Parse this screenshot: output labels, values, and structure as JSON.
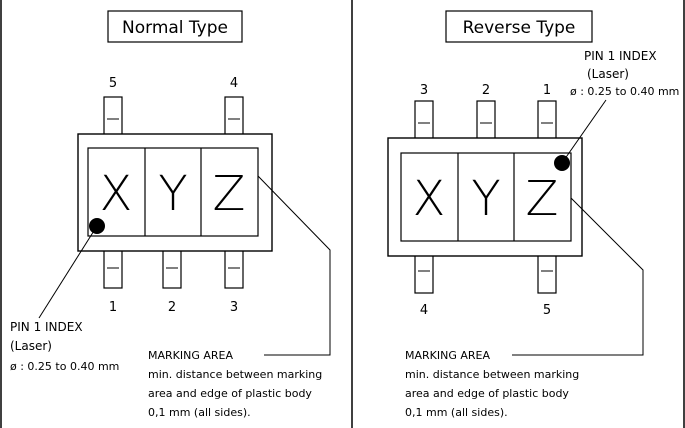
{
  "normal": {
    "title": "Normal Type",
    "pins": {
      "top": [
        "5",
        "4"
      ],
      "bottom": [
        "1",
        "2",
        "3"
      ]
    },
    "letters": [
      "X",
      "Y",
      "Z"
    ],
    "pin1_index": {
      "title": "PIN 1 INDEX",
      "sub": "(Laser)",
      "dia": "ø : 0.25 to 0.40 mm"
    },
    "marking": {
      "title": "MARKING AREA",
      "lines": [
        "min. distance between marking",
        "area and edge of plastic body",
        "0,1 mm (all sides)."
      ]
    }
  },
  "reverse": {
    "title": "Reverse Type",
    "pins": {
      "top": [
        "3",
        "2",
        "1"
      ],
      "bottom": [
        "4",
        "5"
      ]
    },
    "letters": [
      "X",
      "Y",
      "Z"
    ],
    "pin1_index": {
      "title": "PIN 1 INDEX",
      "sub": "(Laser)",
      "dia": "ø : 0.25 to 0.40 mm"
    },
    "marking": {
      "title": "MARKING AREA",
      "lines": [
        "min. distance between marking",
        "area and edge of plastic body",
        "0,1 mm (all sides)."
      ]
    }
  }
}
